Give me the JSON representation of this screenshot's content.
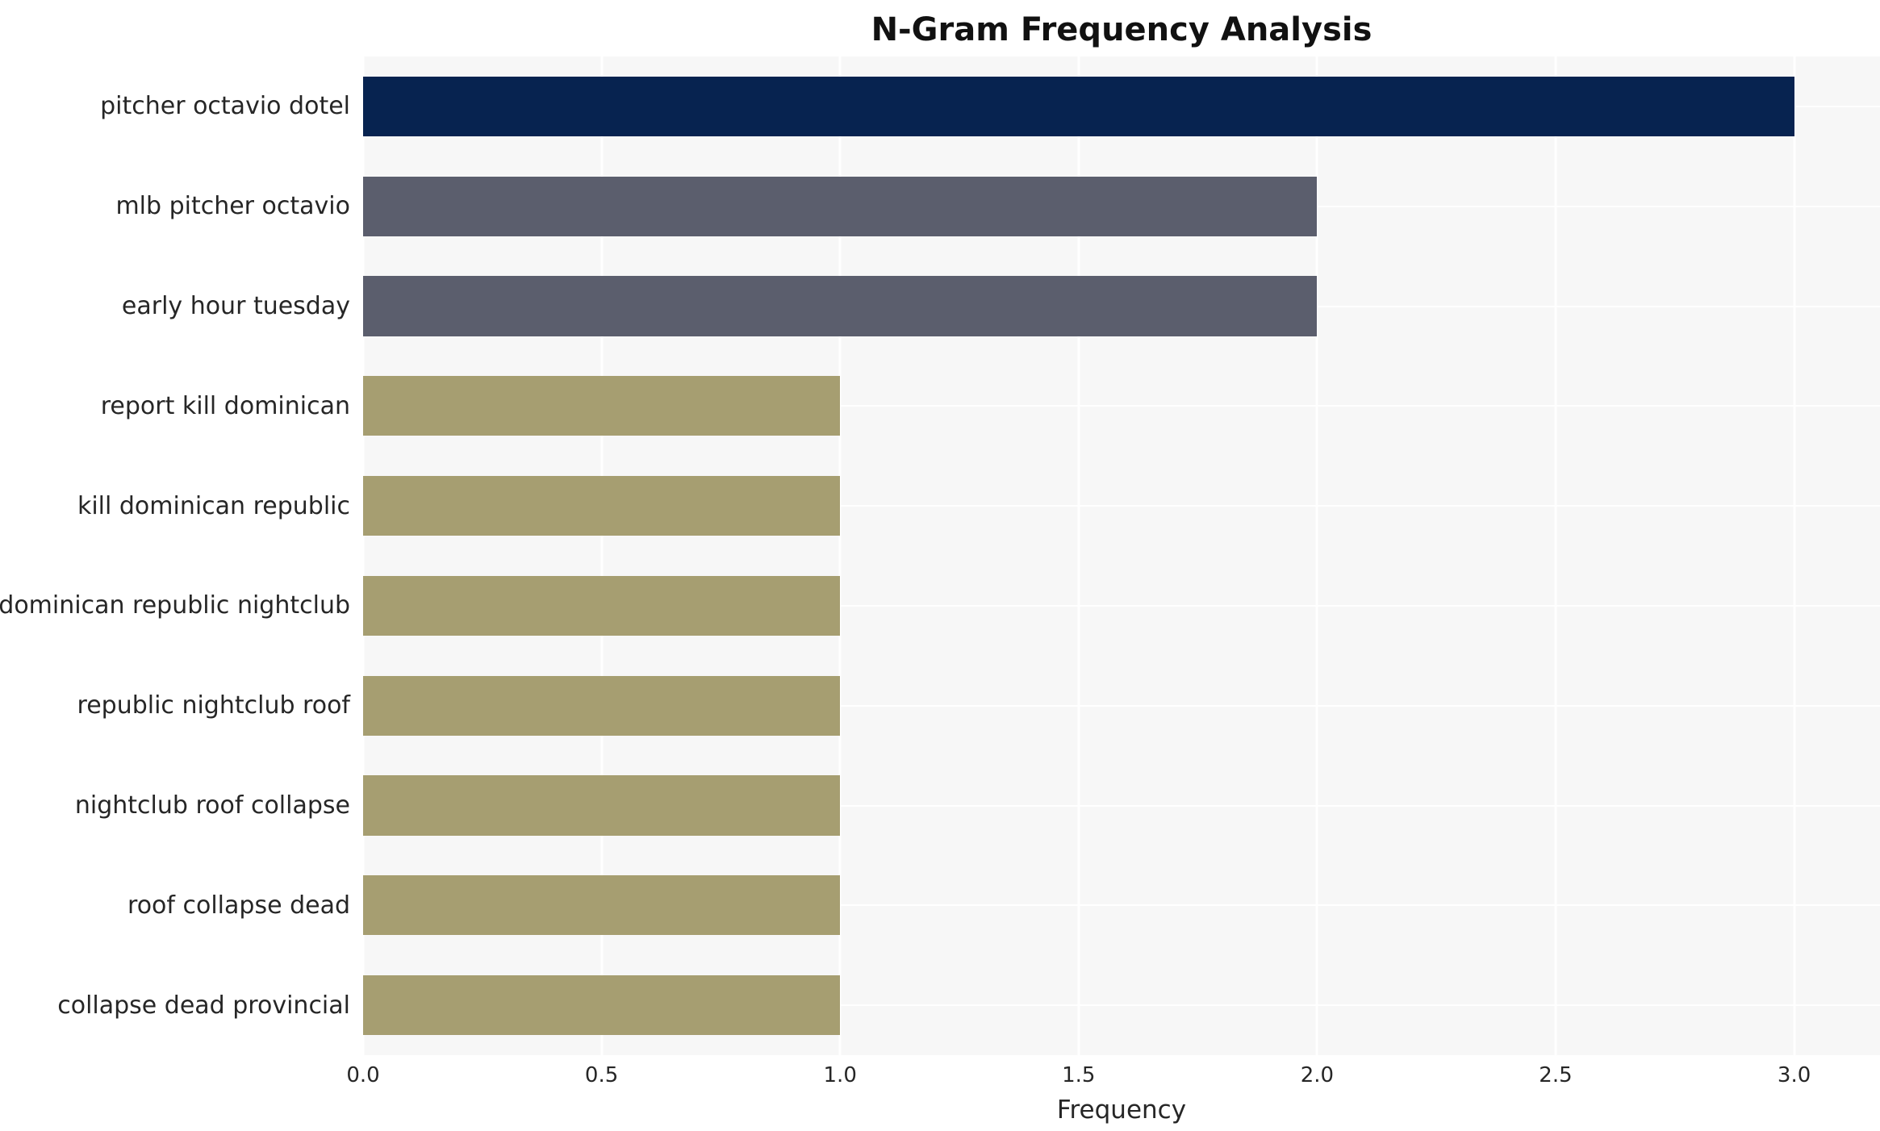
{
  "chart_data": {
    "type": "bar",
    "orientation": "horizontal",
    "title": "N-Gram Frequency Analysis",
    "xlabel": "Frequency",
    "ylabel": "",
    "categories": [
      "pitcher octavio dotel",
      "mlb pitcher octavio",
      "early hour tuesday",
      "report kill dominican",
      "kill dominican republic",
      "dominican republic nightclub",
      "republic nightclub roof",
      "nightclub roof collapse",
      "roof collapse dead",
      "collapse dead provincial"
    ],
    "values": [
      3,
      2,
      2,
      1,
      1,
      1,
      1,
      1,
      1,
      1
    ],
    "bar_colors": [
      "#072350",
      "#5b5e6d",
      "#5b5e6d",
      "#a69e71",
      "#a69e71",
      "#a69e71",
      "#a69e71",
      "#a69e71",
      "#a69e71",
      "#a69e71"
    ],
    "xlim": [
      0,
      3.18
    ],
    "xticks": [
      {
        "value": 0.0,
        "label": "0.0"
      },
      {
        "value": 0.5,
        "label": "0.5"
      },
      {
        "value": 1.0,
        "label": "1.0"
      },
      {
        "value": 1.5,
        "label": "1.5"
      },
      {
        "value": 2.0,
        "label": "2.0"
      },
      {
        "value": 2.5,
        "label": "2.5"
      },
      {
        "value": 3.0,
        "label": "3.0"
      }
    ],
    "plot_background": "#f7f7f7",
    "gridline_color": "#ffffff",
    "grid": "vertical white gridlines at x ticks",
    "legend": "none"
  }
}
